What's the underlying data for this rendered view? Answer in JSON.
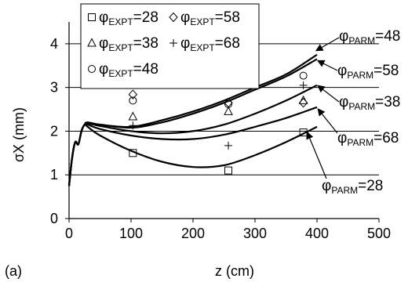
{
  "panel_label": "(a)",
  "chart_data": {
    "type": "line",
    "title": "",
    "xlabel": "z (cm)",
    "ylabel": "σX (mm)",
    "xlim": [
      0,
      500
    ],
    "ylim": [
      0,
      4.5
    ],
    "xticks": [
      "0",
      "100",
      "200",
      "300",
      "400",
      "500"
    ],
    "yticks": [
      "0",
      "1",
      "2",
      "3",
      "4"
    ],
    "grid": "horizontal",
    "legend_position": "top-left",
    "series": [
      {
        "name": "φPARM=48",
        "label_main": "φ",
        "label_sub": "PARM",
        "label_tail": "=48",
        "type": "line",
        "x": [
          0,
          5,
          10,
          15,
          20,
          25,
          30,
          50,
          100,
          150,
          200,
          250,
          300,
          350,
          400
        ],
        "y": [
          0.75,
          1.4,
          1.75,
          1.7,
          2.0,
          2.15,
          2.2,
          2.15,
          2.1,
          2.25,
          2.45,
          2.7,
          3.0,
          3.3,
          3.75
        ]
      },
      {
        "name": "φPARM=58",
        "label_main": "φ",
        "label_sub": "PARM",
        "label_tail": "=58",
        "type": "line",
        "x": [
          0,
          5,
          10,
          15,
          20,
          25,
          30,
          50,
          100,
          150,
          200,
          250,
          300,
          350,
          400
        ],
        "y": [
          0.75,
          1.4,
          1.75,
          1.7,
          2.0,
          2.15,
          2.2,
          2.15,
          2.08,
          2.2,
          2.4,
          2.65,
          2.95,
          3.25,
          3.65
        ]
      },
      {
        "name": "φPARM=38",
        "label_main": "φ",
        "label_sub": "PARM",
        "label_tail": "=38",
        "type": "line",
        "x": [
          0,
          5,
          10,
          15,
          20,
          25,
          30,
          50,
          100,
          150,
          200,
          250,
          300,
          350,
          400
        ],
        "y": [
          0.75,
          1.4,
          1.75,
          1.7,
          2.0,
          2.15,
          2.18,
          2.12,
          2.0,
          1.95,
          2.0,
          2.15,
          2.4,
          2.7,
          3.05
        ]
      },
      {
        "name": "φPARM=68",
        "label_main": "φ",
        "label_sub": "PARM",
        "label_tail": "=68",
        "type": "line",
        "x": [
          0,
          5,
          10,
          15,
          20,
          25,
          30,
          50,
          100,
          150,
          200,
          250,
          300,
          350,
          400
        ],
        "y": [
          0.75,
          1.4,
          1.75,
          1.7,
          2.0,
          2.15,
          2.15,
          2.05,
          1.9,
          1.82,
          1.82,
          1.92,
          2.1,
          2.3,
          2.55
        ]
      },
      {
        "name": "φPARM=28",
        "label_main": "φ",
        "label_sub": "PARM",
        "label_tail": "=28",
        "type": "line",
        "x": [
          0,
          5,
          10,
          15,
          20,
          25,
          30,
          50,
          100,
          150,
          200,
          250,
          300,
          350,
          400
        ],
        "y": [
          0.75,
          1.4,
          1.75,
          1.7,
          2.0,
          2.15,
          2.1,
          1.9,
          1.55,
          1.3,
          1.18,
          1.22,
          1.45,
          1.75,
          2.1
        ]
      },
      {
        "name": "φEXPT=28",
        "label_main": "φ",
        "label_sub": "EXPT",
        "label_tail": "=28",
        "type": "scatter",
        "marker": "square",
        "x": [
          103,
          257,
          378
        ],
        "y": [
          1.5,
          1.1,
          1.97
        ]
      },
      {
        "name": "φEXPT=38",
        "label_main": "φ",
        "label_sub": "EXPT",
        "label_tail": "=38",
        "type": "scatter",
        "marker": "triangle",
        "x": [
          103,
          257,
          378
        ],
        "y": [
          2.33,
          2.45,
          2.7
        ]
      },
      {
        "name": "φEXPT=48",
        "label_main": "φ",
        "label_sub": "EXPT",
        "label_tail": "=48",
        "type": "scatter",
        "marker": "circle",
        "x": [
          103,
          257,
          378
        ],
        "y": [
          2.7,
          2.62,
          3.27
        ]
      },
      {
        "name": "φEXPT=58",
        "label_main": "φ",
        "label_sub": "EXPT",
        "label_tail": "=58",
        "type": "scatter",
        "marker": "diamond",
        "x": [
          103,
          257,
          378
        ],
        "y": [
          2.84,
          2.65,
          2.65
        ]
      },
      {
        "name": "φEXPT=68",
        "label_main": "φ",
        "label_sub": "EXPT",
        "label_tail": "=68",
        "type": "scatter",
        "marker": "plus",
        "x": [
          103,
          257,
          378
        ],
        "y": [
          2.13,
          1.67,
          3.05
        ]
      }
    ]
  }
}
